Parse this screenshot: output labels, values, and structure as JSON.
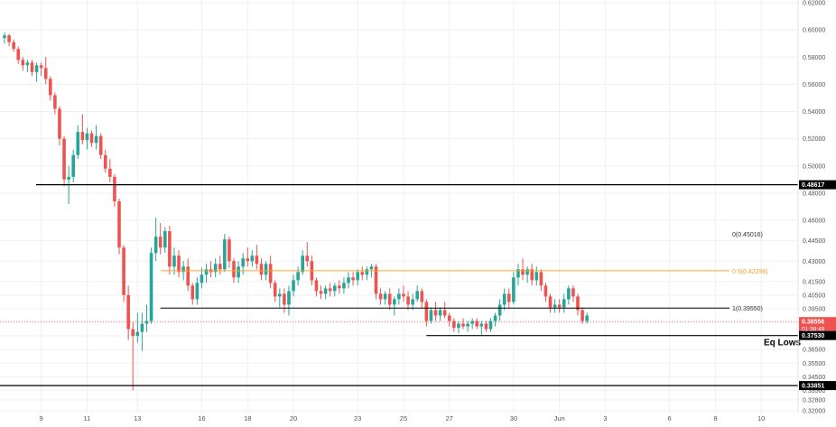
{
  "chart_data": {
    "type": "candlestick",
    "colors": {
      "up": "#26a69a",
      "down": "#ef5350",
      "grid": "#eef0f3",
      "fib_mid": "#f5a623",
      "line": "#000000",
      "current": "#ef5350"
    },
    "y_axis": {
      "ylim": [
        0.318,
        0.622
      ],
      "ticks": [
        "0.62000",
        "0.60000",
        "0.58000",
        "0.56000",
        "0.54000",
        "0.52000",
        "0.50000",
        "0.48000",
        "0.46000",
        "0.44500",
        "0.43000",
        "0.41500",
        "0.40500",
        "0.39500",
        "0.38500",
        "0.37500",
        "0.36500",
        "0.35500",
        "0.34500",
        "0.33500",
        "0.32800",
        "0.32000"
      ],
      "tick_values": [
        0.62,
        0.6,
        0.58,
        0.56,
        0.54,
        0.52,
        0.5,
        0.48,
        0.46,
        0.445,
        0.43,
        0.415,
        0.405,
        0.395,
        0.385,
        0.375,
        0.365,
        0.355,
        0.345,
        0.335,
        0.328,
        0.32
      ]
    },
    "x_axis": {
      "labels": [
        "9",
        "11",
        "13",
        "16",
        "18",
        "20",
        "23",
        "25",
        "27",
        "30",
        "Jun",
        "3",
        "6",
        "8",
        "10"
      ],
      "label_candle_index": [
        8,
        18,
        29,
        43,
        53,
        63,
        77,
        87,
        97,
        111,
        121,
        131,
        145,
        155,
        165
      ]
    },
    "levels": [
      {
        "name": "resistance",
        "value": 0.48617,
        "label": "0.48617"
      },
      {
        "name": "support",
        "value": 0.3753,
        "label": "0.37530",
        "annotation": "Eq Lows"
      },
      {
        "name": "low",
        "value": 0.33851,
        "label": "0.33851"
      },
      {
        "name": "current",
        "value": 0.38556,
        "label": "0.38556",
        "countdown": "01:38:49"
      }
    ],
    "fib": [
      {
        "label": "0(0.45016)",
        "value": 0.45016
      },
      {
        "label": "0.5(0.42298)",
        "value": 0.42298
      },
      {
        "label": "1(0.39550)",
        "value": 0.3955
      }
    ],
    "candles": [
      {
        "o": 0.594,
        "h": 0.598,
        "l": 0.59,
        "c": 0.596
      },
      {
        "o": 0.596,
        "h": 0.597,
        "l": 0.588,
        "c": 0.591
      },
      {
        "o": 0.591,
        "h": 0.593,
        "l": 0.584,
        "c": 0.586
      },
      {
        "o": 0.586,
        "h": 0.588,
        "l": 0.575,
        "c": 0.578
      },
      {
        "o": 0.578,
        "h": 0.58,
        "l": 0.57,
        "c": 0.574
      },
      {
        "o": 0.574,
        "h": 0.578,
        "l": 0.569,
        "c": 0.576
      },
      {
        "o": 0.576,
        "h": 0.578,
        "l": 0.566,
        "c": 0.569
      },
      {
        "o": 0.569,
        "h": 0.576,
        "l": 0.562,
        "c": 0.574
      },
      {
        "o": 0.574,
        "h": 0.576,
        "l": 0.566,
        "c": 0.572
      },
      {
        "o": 0.572,
        "h": 0.58,
        "l": 0.56,
        "c": 0.564
      },
      {
        "o": 0.564,
        "h": 0.566,
        "l": 0.548,
        "c": 0.552
      },
      {
        "o": 0.552,
        "h": 0.554,
        "l": 0.538,
        "c": 0.542
      },
      {
        "o": 0.542,
        "h": 0.544,
        "l": 0.515,
        "c": 0.52
      },
      {
        "o": 0.52,
        "h": 0.522,
        "l": 0.485,
        "c": 0.49
      },
      {
        "o": 0.49,
        "h": 0.5,
        "l": 0.472,
        "c": 0.492
      },
      {
        "o": 0.492,
        "h": 0.512,
        "l": 0.488,
        "c": 0.508
      },
      {
        "o": 0.508,
        "h": 0.53,
        "l": 0.505,
        "c": 0.525
      },
      {
        "o": 0.525,
        "h": 0.538,
        "l": 0.516,
        "c": 0.519
      },
      {
        "o": 0.519,
        "h": 0.528,
        "l": 0.512,
        "c": 0.524
      },
      {
        "o": 0.524,
        "h": 0.526,
        "l": 0.514,
        "c": 0.517
      },
      {
        "o": 0.517,
        "h": 0.53,
        "l": 0.512,
        "c": 0.522
      },
      {
        "o": 0.522,
        "h": 0.524,
        "l": 0.505,
        "c": 0.508
      },
      {
        "o": 0.508,
        "h": 0.512,
        "l": 0.495,
        "c": 0.498
      },
      {
        "o": 0.498,
        "h": 0.505,
        "l": 0.488,
        "c": 0.492
      },
      {
        "o": 0.492,
        "h": 0.494,
        "l": 0.47,
        "c": 0.474
      },
      {
        "o": 0.474,
        "h": 0.476,
        "l": 0.435,
        "c": 0.44
      },
      {
        "o": 0.44,
        "h": 0.442,
        "l": 0.4,
        "c": 0.405
      },
      {
        "o": 0.405,
        "h": 0.412,
        "l": 0.372,
        "c": 0.38
      },
      {
        "o": 0.38,
        "h": 0.385,
        "l": 0.335,
        "c": 0.375
      },
      {
        "o": 0.375,
        "h": 0.392,
        "l": 0.37,
        "c": 0.378
      },
      {
        "o": 0.378,
        "h": 0.392,
        "l": 0.364,
        "c": 0.384
      },
      {
        "o": 0.384,
        "h": 0.398,
        "l": 0.378,
        "c": 0.386
      },
      {
        "o": 0.386,
        "h": 0.44,
        "l": 0.384,
        "c": 0.436
      },
      {
        "o": 0.436,
        "h": 0.462,
        "l": 0.43,
        "c": 0.448
      },
      {
        "o": 0.448,
        "h": 0.458,
        "l": 0.435,
        "c": 0.44
      },
      {
        "o": 0.44,
        "h": 0.455,
        "l": 0.436,
        "c": 0.452
      },
      {
        "o": 0.452,
        "h": 0.456,
        "l": 0.42,
        "c": 0.426
      },
      {
        "o": 0.426,
        "h": 0.44,
        "l": 0.42,
        "c": 0.434
      },
      {
        "o": 0.434,
        "h": 0.438,
        "l": 0.418,
        "c": 0.422
      },
      {
        "o": 0.422,
        "h": 0.43,
        "l": 0.416,
        "c": 0.426
      },
      {
        "o": 0.426,
        "h": 0.432,
        "l": 0.408,
        "c": 0.412
      },
      {
        "o": 0.412,
        "h": 0.414,
        "l": 0.398,
        "c": 0.402
      },
      {
        "o": 0.402,
        "h": 0.418,
        "l": 0.398,
        "c": 0.414
      },
      {
        "o": 0.414,
        "h": 0.425,
        "l": 0.41,
        "c": 0.42
      },
      {
        "o": 0.42,
        "h": 0.428,
        "l": 0.414,
        "c": 0.424
      },
      {
        "o": 0.424,
        "h": 0.43,
        "l": 0.418,
        "c": 0.422
      },
      {
        "o": 0.422,
        "h": 0.432,
        "l": 0.418,
        "c": 0.428
      },
      {
        "o": 0.428,
        "h": 0.434,
        "l": 0.42,
        "c": 0.424
      },
      {
        "o": 0.424,
        "h": 0.45,
        "l": 0.422,
        "c": 0.446
      },
      {
        "o": 0.446,
        "h": 0.448,
        "l": 0.425,
        "c": 0.43
      },
      {
        "o": 0.43,
        "h": 0.432,
        "l": 0.414,
        "c": 0.418
      },
      {
        "o": 0.418,
        "h": 0.43,
        "l": 0.414,
        "c": 0.426
      },
      {
        "o": 0.426,
        "h": 0.436,
        "l": 0.42,
        "c": 0.432
      },
      {
        "o": 0.432,
        "h": 0.44,
        "l": 0.426,
        "c": 0.43
      },
      {
        "o": 0.43,
        "h": 0.438,
        "l": 0.426,
        "c": 0.434
      },
      {
        "o": 0.434,
        "h": 0.442,
        "l": 0.424,
        "c": 0.428
      },
      {
        "o": 0.428,
        "h": 0.432,
        "l": 0.416,
        "c": 0.42
      },
      {
        "o": 0.42,
        "h": 0.43,
        "l": 0.416,
        "c": 0.428
      },
      {
        "o": 0.428,
        "h": 0.434,
        "l": 0.41,
        "c": 0.414
      },
      {
        "o": 0.414,
        "h": 0.416,
        "l": 0.4,
        "c": 0.404
      },
      {
        "o": 0.404,
        "h": 0.41,
        "l": 0.396,
        "c": 0.406
      },
      {
        "o": 0.406,
        "h": 0.41,
        "l": 0.392,
        "c": 0.398
      },
      {
        "o": 0.398,
        "h": 0.412,
        "l": 0.39,
        "c": 0.408
      },
      {
        "o": 0.408,
        "h": 0.42,
        "l": 0.404,
        "c": 0.416
      },
      {
        "o": 0.416,
        "h": 0.426,
        "l": 0.412,
        "c": 0.422
      },
      {
        "o": 0.422,
        "h": 0.438,
        "l": 0.42,
        "c": 0.434
      },
      {
        "o": 0.434,
        "h": 0.444,
        "l": 0.426,
        "c": 0.43
      },
      {
        "o": 0.43,
        "h": 0.434,
        "l": 0.412,
        "c": 0.416
      },
      {
        "o": 0.416,
        "h": 0.418,
        "l": 0.404,
        "c": 0.408
      },
      {
        "o": 0.408,
        "h": 0.412,
        "l": 0.402,
        "c": 0.406
      },
      {
        "o": 0.406,
        "h": 0.412,
        "l": 0.402,
        "c": 0.41
      },
      {
        "o": 0.41,
        "h": 0.414,
        "l": 0.404,
        "c": 0.408
      },
      {
        "o": 0.408,
        "h": 0.414,
        "l": 0.404,
        "c": 0.412
      },
      {
        "o": 0.412,
        "h": 0.416,
        "l": 0.406,
        "c": 0.41
      },
      {
        "o": 0.41,
        "h": 0.418,
        "l": 0.406,
        "c": 0.414
      },
      {
        "o": 0.414,
        "h": 0.422,
        "l": 0.41,
        "c": 0.418
      },
      {
        "o": 0.418,
        "h": 0.422,
        "l": 0.412,
        "c": 0.416
      },
      {
        "o": 0.416,
        "h": 0.424,
        "l": 0.412,
        "c": 0.422
      },
      {
        "o": 0.422,
        "h": 0.426,
        "l": 0.416,
        "c": 0.42
      },
      {
        "o": 0.42,
        "h": 0.426,
        "l": 0.416,
        "c": 0.424
      },
      {
        "o": 0.424,
        "h": 0.428,
        "l": 0.418,
        "c": 0.426
      },
      {
        "o": 0.426,
        "h": 0.428,
        "l": 0.402,
        "c": 0.406
      },
      {
        "o": 0.406,
        "h": 0.41,
        "l": 0.398,
        "c": 0.402
      },
      {
        "o": 0.402,
        "h": 0.408,
        "l": 0.398,
        "c": 0.406
      },
      {
        "o": 0.406,
        "h": 0.41,
        "l": 0.394,
        "c": 0.398
      },
      {
        "o": 0.398,
        "h": 0.404,
        "l": 0.39,
        "c": 0.402
      },
      {
        "o": 0.402,
        "h": 0.41,
        "l": 0.398,
        "c": 0.406
      },
      {
        "o": 0.406,
        "h": 0.412,
        "l": 0.4,
        "c": 0.404
      },
      {
        "o": 0.404,
        "h": 0.408,
        "l": 0.394,
        "c": 0.398
      },
      {
        "o": 0.398,
        "h": 0.406,
        "l": 0.394,
        "c": 0.402
      },
      {
        "o": 0.402,
        "h": 0.412,
        "l": 0.4,
        "c": 0.408
      },
      {
        "o": 0.408,
        "h": 0.41,
        "l": 0.396,
        "c": 0.4
      },
      {
        "o": 0.4,
        "h": 0.402,
        "l": 0.382,
        "c": 0.386
      },
      {
        "o": 0.386,
        "h": 0.396,
        "l": 0.384,
        "c": 0.394
      },
      {
        "o": 0.394,
        "h": 0.4,
        "l": 0.386,
        "c": 0.39
      },
      {
        "o": 0.39,
        "h": 0.396,
        "l": 0.386,
        "c": 0.394
      },
      {
        "o": 0.394,
        "h": 0.4,
        "l": 0.388,
        "c": 0.39
      },
      {
        "o": 0.39,
        "h": 0.392,
        "l": 0.382,
        "c": 0.386
      },
      {
        "o": 0.386,
        "h": 0.388,
        "l": 0.378,
        "c": 0.381
      },
      {
        "o": 0.381,
        "h": 0.386,
        "l": 0.377,
        "c": 0.384
      },
      {
        "o": 0.384,
        "h": 0.388,
        "l": 0.38,
        "c": 0.382
      },
      {
        "o": 0.382,
        "h": 0.386,
        "l": 0.378,
        "c": 0.384
      },
      {
        "o": 0.384,
        "h": 0.388,
        "l": 0.38,
        "c": 0.386
      },
      {
        "o": 0.386,
        "h": 0.388,
        "l": 0.38,
        "c": 0.382
      },
      {
        "o": 0.382,
        "h": 0.386,
        "l": 0.376,
        "c": 0.384
      },
      {
        "o": 0.384,
        "h": 0.386,
        "l": 0.378,
        "c": 0.38
      },
      {
        "o": 0.38,
        "h": 0.388,
        "l": 0.378,
        "c": 0.386
      },
      {
        "o": 0.386,
        "h": 0.392,
        "l": 0.382,
        "c": 0.39
      },
      {
        "o": 0.39,
        "h": 0.402,
        "l": 0.386,
        "c": 0.398
      },
      {
        "o": 0.398,
        "h": 0.41,
        "l": 0.394,
        "c": 0.406
      },
      {
        "o": 0.406,
        "h": 0.41,
        "l": 0.396,
        "c": 0.4
      },
      {
        "o": 0.4,
        "h": 0.422,
        "l": 0.398,
        "c": 0.418
      },
      {
        "o": 0.418,
        "h": 0.428,
        "l": 0.412,
        "c": 0.424
      },
      {
        "o": 0.424,
        "h": 0.432,
        "l": 0.416,
        "c": 0.42
      },
      {
        "o": 0.42,
        "h": 0.426,
        "l": 0.414,
        "c": 0.424
      },
      {
        "o": 0.424,
        "h": 0.428,
        "l": 0.412,
        "c": 0.416
      },
      {
        "o": 0.416,
        "h": 0.426,
        "l": 0.412,
        "c": 0.422
      },
      {
        "o": 0.422,
        "h": 0.424,
        "l": 0.408,
        "c": 0.412
      },
      {
        "o": 0.412,
        "h": 0.414,
        "l": 0.4,
        "c": 0.404
      },
      {
        "o": 0.404,
        "h": 0.406,
        "l": 0.392,
        "c": 0.396
      },
      {
        "o": 0.396,
        "h": 0.402,
        "l": 0.392,
        "c": 0.398
      },
      {
        "o": 0.398,
        "h": 0.402,
        "l": 0.392,
        "c": 0.396
      },
      {
        "o": 0.396,
        "h": 0.406,
        "l": 0.392,
        "c": 0.402
      },
      {
        "o": 0.402,
        "h": 0.412,
        "l": 0.398,
        "c": 0.41
      },
      {
        "o": 0.41,
        "h": 0.412,
        "l": 0.4,
        "c": 0.404
      },
      {
        "o": 0.404,
        "h": 0.406,
        "l": 0.39,
        "c": 0.394
      },
      {
        "o": 0.394,
        "h": 0.396,
        "l": 0.384,
        "c": 0.386
      },
      {
        "o": 0.386,
        "h": 0.392,
        "l": 0.384,
        "c": 0.39
      }
    ]
  }
}
